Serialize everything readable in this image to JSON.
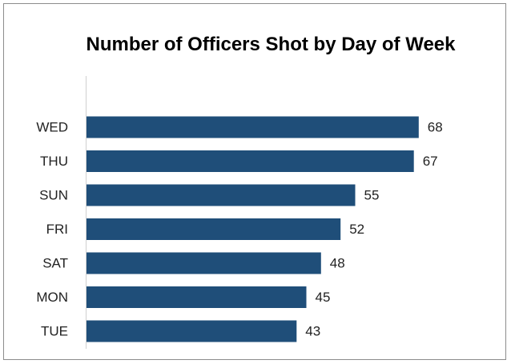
{
  "chart_data": {
    "type": "barh",
    "title": "Number of Officers Shot by Day of Week",
    "categories": [
      "WED",
      "THU",
      "SUN",
      "FRI",
      "SAT",
      "MON",
      "TUE"
    ],
    "values": [
      68,
      67,
      55,
      52,
      48,
      45,
      43
    ],
    "color": "#1f4e79"
  }
}
